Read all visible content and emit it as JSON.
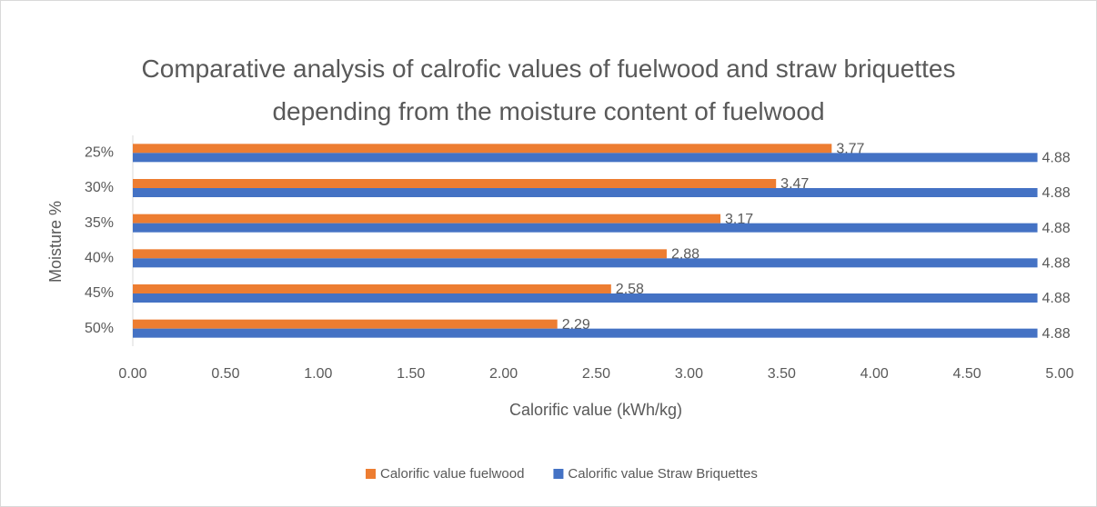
{
  "chart_data": {
    "type": "bar",
    "orientation": "horizontal",
    "title": "Comparative analysis of calrofic values of fuelwood and straw briquettes depending from the moisture content of fuelwood",
    "x_label": "Calorific value (kWh/kg)",
    "y_label": "Moisture %",
    "categories": [
      "25%",
      "30%",
      "35%",
      "40%",
      "45%",
      "50%"
    ],
    "series": [
      {
        "name": "Calorific value fuelwood",
        "color": "#ed7d31",
        "values": [
          3.77,
          3.47,
          3.17,
          2.88,
          2.58,
          2.29
        ]
      },
      {
        "name": "Calorific value Straw Briquettes",
        "color": "#4472c4",
        "values": [
          4.88,
          4.88,
          4.88,
          4.88,
          4.88,
          4.88
        ]
      }
    ],
    "xlim": [
      0,
      5
    ],
    "xticks": [
      {
        "value": 0,
        "label": "0.00"
      },
      {
        "value": 0.5,
        "label": "0.50"
      },
      {
        "value": 1,
        "label": "1.00"
      },
      {
        "value": 1.5,
        "label": "1.50"
      },
      {
        "value": 2,
        "label": "2.00"
      },
      {
        "value": 2.5,
        "label": "2.50"
      },
      {
        "value": 3,
        "label": "3.00"
      },
      {
        "value": 3.5,
        "label": "3.50"
      },
      {
        "value": 4,
        "label": "4.00"
      },
      {
        "value": 4.5,
        "label": "4.50"
      },
      {
        "value": 5,
        "label": "5.00"
      }
    ],
    "grid": false,
    "legend": "bottom"
  }
}
